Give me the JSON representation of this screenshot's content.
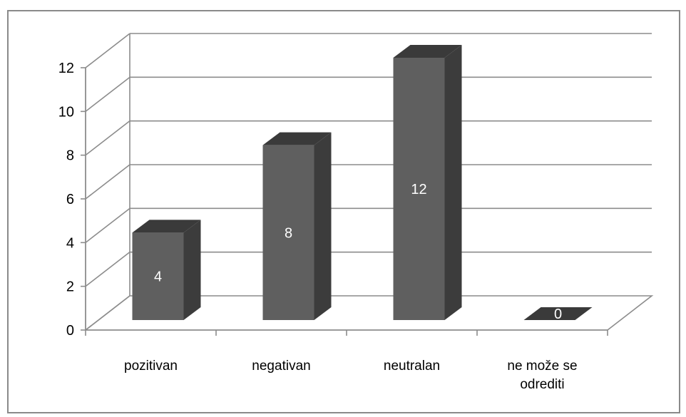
{
  "chart_data": {
    "type": "bar",
    "categories": [
      "pozitivan",
      "negativan",
      "neutralan",
      "ne može se odrediti"
    ],
    "values": [
      4,
      8,
      12,
      0
    ],
    "title": "",
    "xlabel": "",
    "ylabel": "",
    "ylim": [
      0,
      12
    ],
    "yticks": [
      "0",
      "2",
      "4",
      "6",
      "8",
      "10",
      "12"
    ],
    "grid": true,
    "legend": "none",
    "colors": {
      "bar_front": "#5f5f5f",
      "bar_side": "#3c3c3c",
      "bar_top": "#3a3a3a",
      "grid": "#8c8c8c",
      "data_label": "#ffffff"
    }
  }
}
